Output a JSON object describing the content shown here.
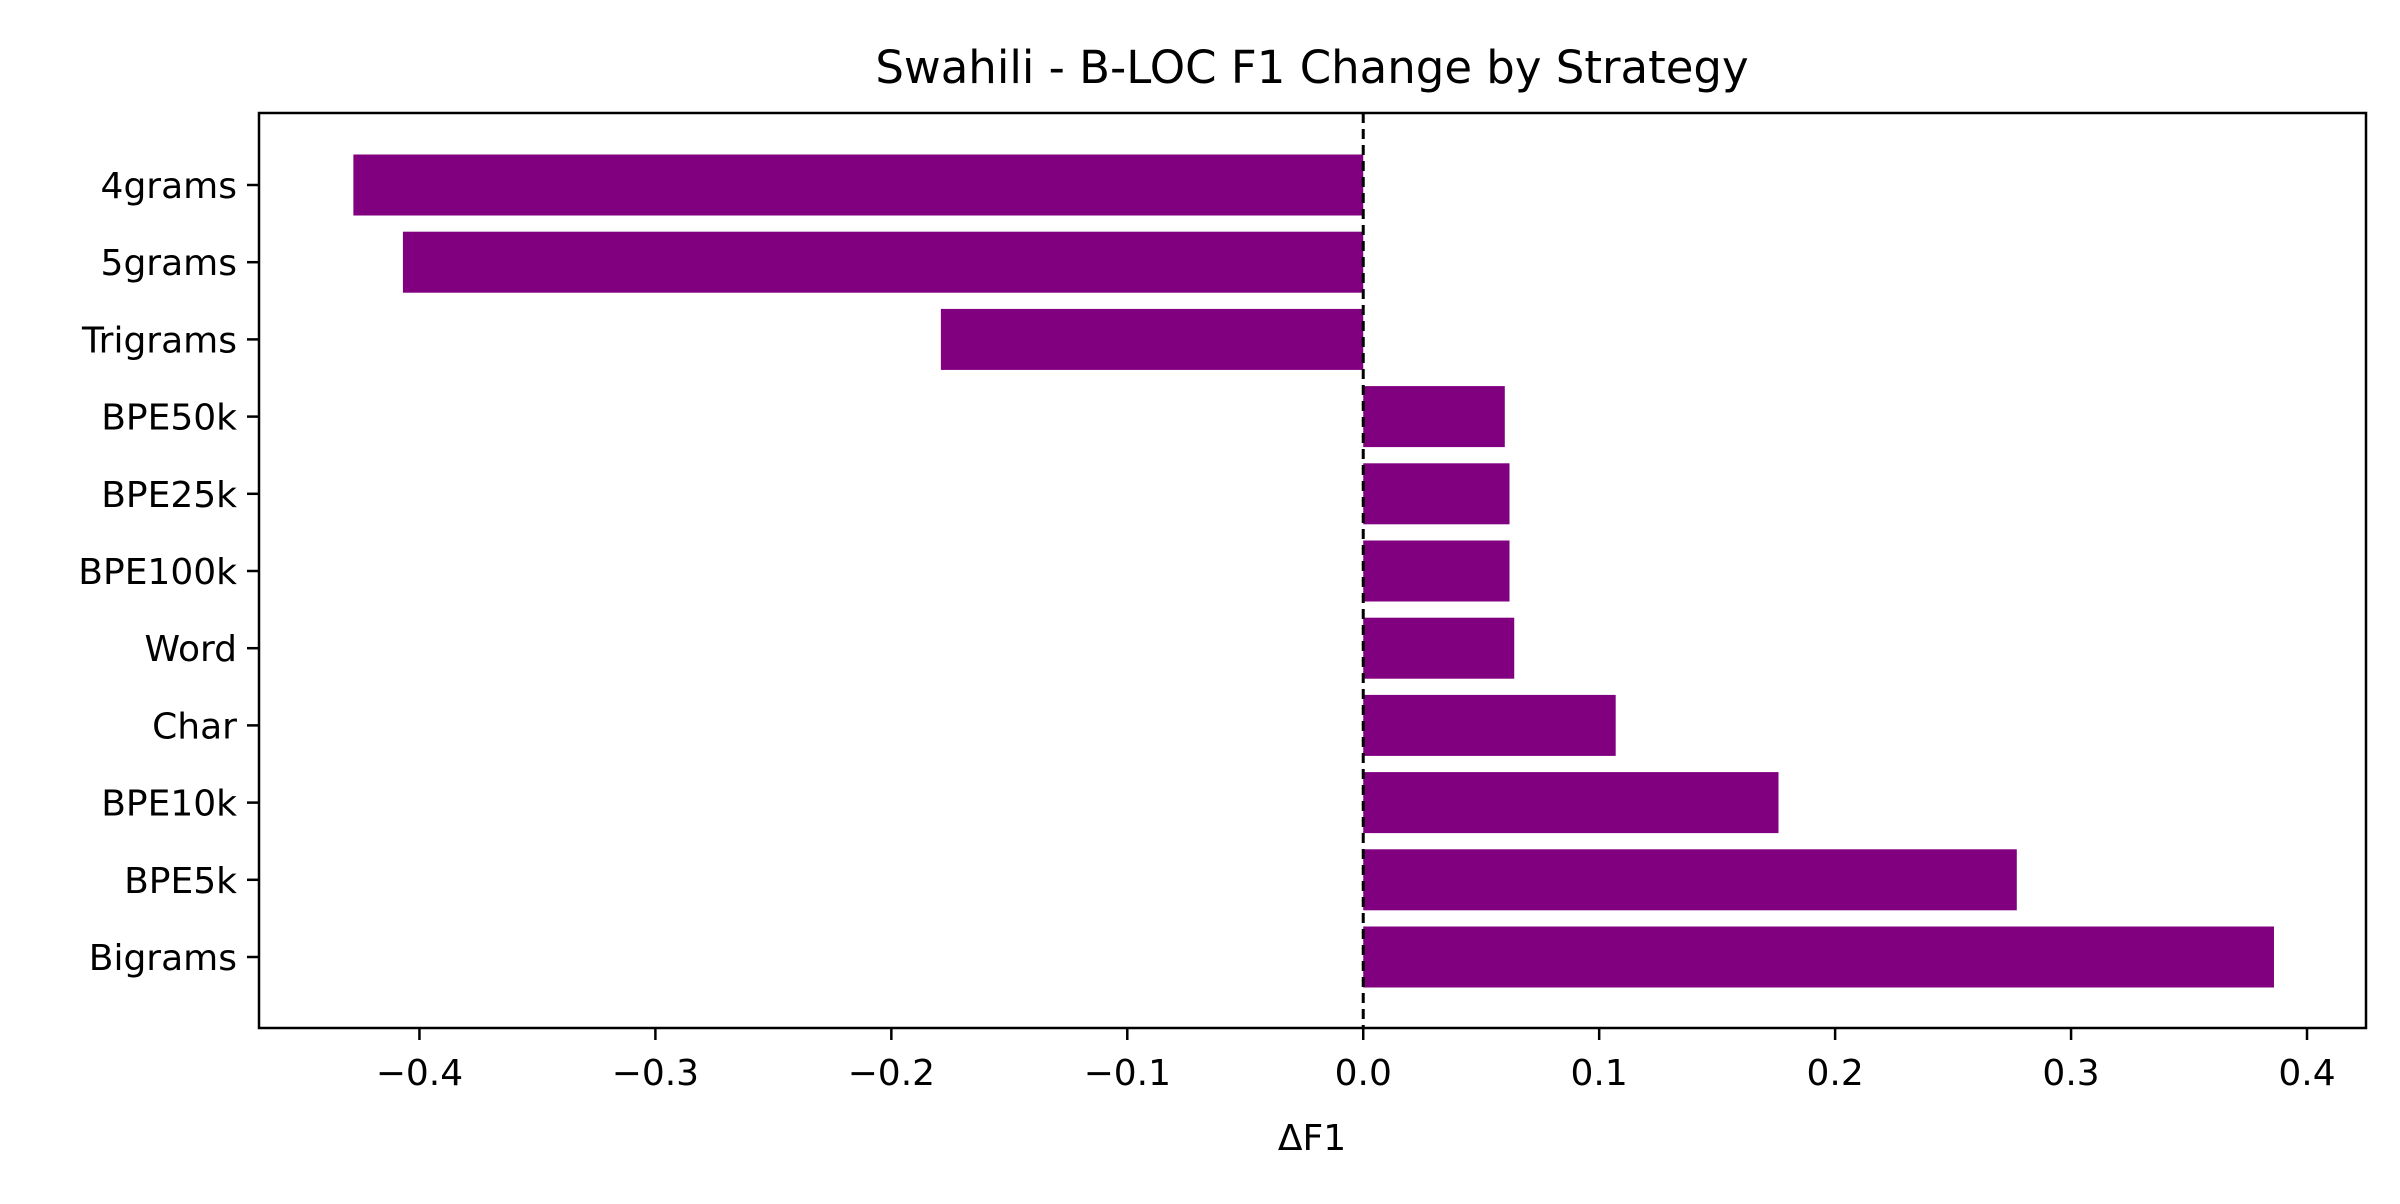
{
  "chart_data": {
    "type": "bar",
    "orientation": "horizontal",
    "title": "Swahili - B-LOC F1 Change by Strategy",
    "xlabel": "ΔF1",
    "ylabel": "",
    "categories": [
      "4grams",
      "5grams",
      "Trigrams",
      "BPE50k",
      "BPE25k",
      "BPE100k",
      "Word",
      "Char",
      "BPE10k",
      "BPE5k",
      "Bigrams"
    ],
    "values": [
      -0.428,
      -0.407,
      -0.179,
      0.06,
      0.062,
      0.062,
      0.064,
      0.107,
      0.176,
      0.277,
      0.386
    ],
    "xlim": [
      -0.468,
      0.425
    ],
    "xticks": [
      -0.4,
      -0.3,
      -0.2,
      -0.1,
      0.0,
      0.1,
      0.2,
      0.3,
      0.4
    ],
    "xtick_labels": [
      "−0.4",
      "−0.3",
      "−0.2",
      "−0.1",
      "0.0",
      "0.1",
      "0.2",
      "0.3",
      "0.4"
    ],
    "reference_line": {
      "x": 0,
      "style": "dashed",
      "color": "#000000"
    },
    "bar_color": "#800080",
    "grid": false,
    "legend": "none"
  }
}
